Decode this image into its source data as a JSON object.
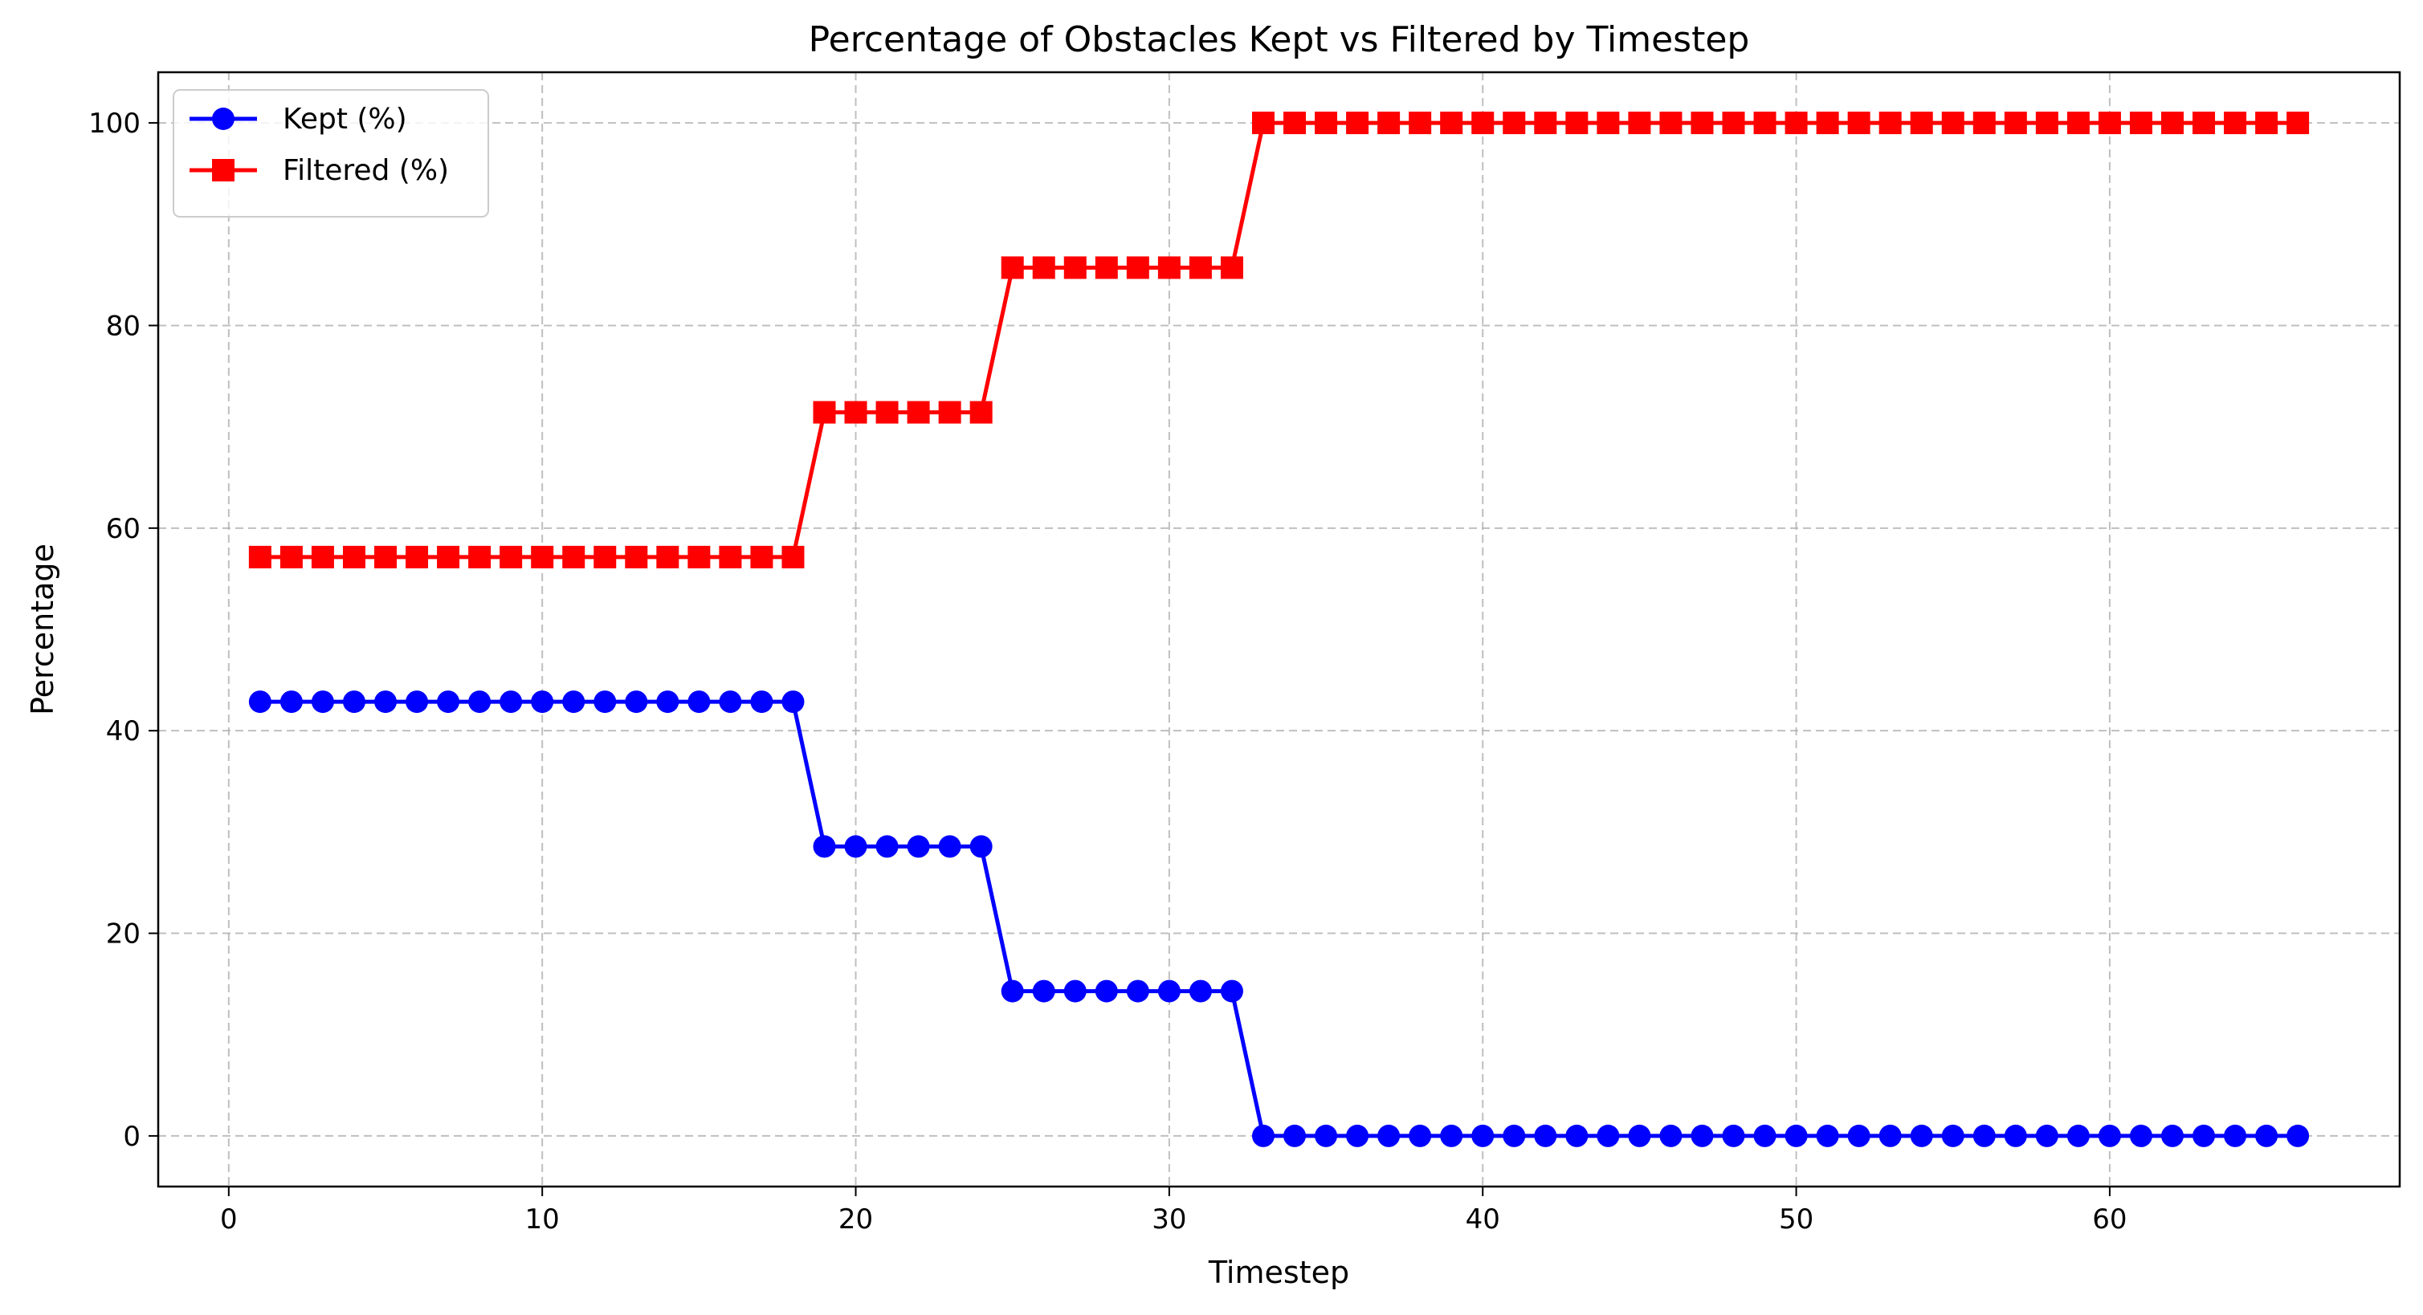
{
  "chart_data": {
    "type": "line",
    "title": "Percentage of Obstacles Kept vs Filtered by Timestep",
    "xlabel": "Timestep",
    "ylabel": "Percentage",
    "xlim": [
      -2.25,
      69.25
    ],
    "ylim": [
      -5,
      105
    ],
    "x_ticks": [
      0,
      10,
      20,
      30,
      40,
      50,
      60
    ],
    "y_ticks": [
      0,
      20,
      40,
      60,
      80,
      100
    ],
    "grid": true,
    "legend_position": "upper left",
    "x": [
      1,
      2,
      3,
      4,
      5,
      6,
      7,
      8,
      9,
      10,
      11,
      12,
      13,
      14,
      15,
      16,
      17,
      18,
      19,
      20,
      21,
      22,
      23,
      24,
      25,
      26,
      27,
      28,
      29,
      30,
      31,
      32,
      33,
      34,
      35,
      36,
      37,
      38,
      39,
      40,
      41,
      42,
      43,
      44,
      45,
      46,
      47,
      48,
      49,
      50,
      51,
      52,
      53,
      54,
      55,
      56,
      57,
      58,
      59,
      60,
      61,
      62,
      63,
      64,
      65,
      66
    ],
    "series": [
      {
        "name": "Kept (%)",
        "color": "#0000ff",
        "marker": "circle",
        "values": [
          42.86,
          42.86,
          42.86,
          42.86,
          42.86,
          42.86,
          42.86,
          42.86,
          42.86,
          42.86,
          42.86,
          42.86,
          42.86,
          42.86,
          42.86,
          42.86,
          42.86,
          42.86,
          28.57,
          28.57,
          28.57,
          28.57,
          28.57,
          28.57,
          14.29,
          14.29,
          14.29,
          14.29,
          14.29,
          14.29,
          14.29,
          14.29,
          0,
          0,
          0,
          0,
          0,
          0,
          0,
          0,
          0,
          0,
          0,
          0,
          0,
          0,
          0,
          0,
          0,
          0,
          0,
          0,
          0,
          0,
          0,
          0,
          0,
          0,
          0,
          0,
          0,
          0,
          0,
          0,
          0,
          0
        ]
      },
      {
        "name": "Filtered (%)",
        "color": "#ff0000",
        "marker": "square",
        "values": [
          57.14,
          57.14,
          57.14,
          57.14,
          57.14,
          57.14,
          57.14,
          57.14,
          57.14,
          57.14,
          57.14,
          57.14,
          57.14,
          57.14,
          57.14,
          57.14,
          57.14,
          57.14,
          71.43,
          71.43,
          71.43,
          71.43,
          71.43,
          71.43,
          85.71,
          85.71,
          85.71,
          85.71,
          85.71,
          85.71,
          85.71,
          85.71,
          100,
          100,
          100,
          100,
          100,
          100,
          100,
          100,
          100,
          100,
          100,
          100,
          100,
          100,
          100,
          100,
          100,
          100,
          100,
          100,
          100,
          100,
          100,
          100,
          100,
          100,
          100,
          100,
          100,
          100,
          100,
          100,
          100,
          100
        ]
      }
    ]
  }
}
